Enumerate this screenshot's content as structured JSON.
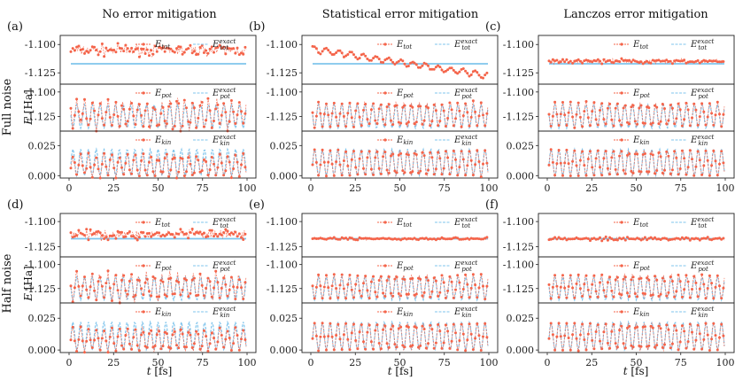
{
  "chart_data": {
    "type": "line",
    "column_titles": [
      "No error mitigation",
      "Statistical error mitigation",
      "Lanczos error mitigation"
    ],
    "row_labels": [
      "Full noise",
      "Half noise"
    ],
    "panel_letters": [
      "(a)",
      "(b)",
      "(c)",
      "(d)",
      "(e)",
      "(f)"
    ],
    "xlabel_var": "t",
    "xlabel_unit": "[fs]",
    "ylabel_var": "E",
    "ylabel_unit": "[Ha]",
    "xlim": [
      0,
      100
    ],
    "xticks": [
      0,
      25,
      50,
      75,
      100
    ],
    "xtick_labels": [
      "0",
      "25",
      "50",
      "75",
      "100"
    ],
    "colors": {
      "noisy": "#f4644a",
      "exact": "#7fc4ec"
    },
    "subplots": [
      {
        "key": "tot",
        "ylim": [
          -1.135,
          -1.092
        ],
        "yticks": [
          -1.1,
          -1.125
        ],
        "ytick_labels": [
          "-1.100",
          "-1.125"
        ],
        "legend": [
          {
            "base": "E",
            "sub": "tot",
            "sup": ""
          },
          {
            "base": "E",
            "sub": "tot",
            "sup": "exact"
          }
        ]
      },
      {
        "key": "pot",
        "ylim": [
          -1.14,
          -1.092
        ],
        "yticks": [
          -1.1,
          -1.125
        ],
        "ytick_labels": [
          "-1.100",
          "-1.125"
        ],
        "legend": [
          {
            "base": "E",
            "sub": "pot",
            "sup": ""
          },
          {
            "base": "E",
            "sub": "pot",
            "sup": "exact"
          }
        ]
      },
      {
        "key": "kin",
        "ylim": [
          -0.002,
          0.037
        ],
        "yticks": [
          0.0,
          0.025
        ],
        "ytick_labels": [
          "0.000",
          "0.025"
        ],
        "legend": [
          {
            "base": "E",
            "sub": "kin",
            "sup": ""
          },
          {
            "base": "E",
            "sub": "kin",
            "sup": "exact"
          }
        ]
      }
    ],
    "exact_model": {
      "E_tot": -1.117,
      "E_pot_center": -1.125,
      "E_pot_amplitude": 0.012,
      "E_kin_max": 0.022,
      "oscillation_period_fs": 4.35
    },
    "panels": [
      {
        "id": "a",
        "noise": "full",
        "mitigation": "none",
        "tot_offset": 0.012,
        "tot_noise": 0.006,
        "pot_noise": 0.008,
        "kin_noise": 0.004
      },
      {
        "id": "b",
        "noise": "full",
        "mitigation": "statistical",
        "tot_offset": 0.013,
        "tot_noise": 0.001,
        "pot_noise": 0.002,
        "kin_noise": 0.001
      },
      {
        "id": "c",
        "noise": "full",
        "mitigation": "lanczos",
        "tot_offset": 0.002,
        "tot_noise": 0.0025,
        "pot_noise": 0.002,
        "kin_noise": 0.001
      },
      {
        "id": "d",
        "noise": "half",
        "mitigation": "none",
        "tot_offset": 0.004,
        "tot_noise": 0.006,
        "pot_noise": 0.006,
        "kin_noise": 0.003
      },
      {
        "id": "e",
        "noise": "half",
        "mitigation": "statistical",
        "tot_offset": 0.0,
        "tot_noise": 0.0015,
        "pot_noise": 0.0015,
        "kin_noise": 0.001
      },
      {
        "id": "f",
        "noise": "half",
        "mitigation": "lanczos",
        "tot_offset": 0.0,
        "tot_noise": 0.002,
        "pot_noise": 0.002,
        "kin_noise": 0.001
      }
    ]
  }
}
